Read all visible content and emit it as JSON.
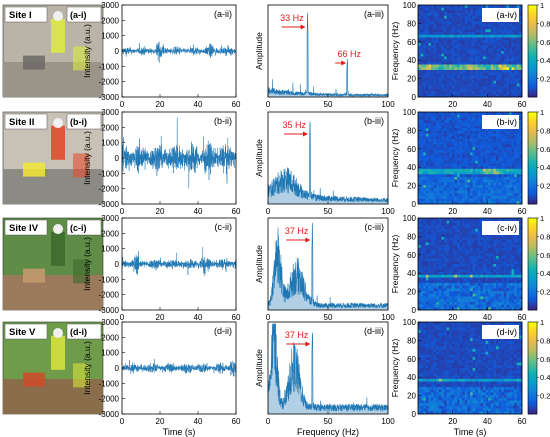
{
  "panels": {
    "xlabels": {
      "time": "Time (s)",
      "frequency": "Frequency (Hz)",
      "spectrogram": "Time (s)"
    },
    "ylabels": {
      "intensity": "Intensity (a.u.)",
      "amplitude": "Amplitude",
      "frequency": "Frequency (Hz)"
    },
    "colorbar": {
      "ticks": [
        "1",
        "0.8",
        "0.6",
        "0.4",
        "0.2"
      ]
    }
  },
  "rows": [
    {
      "site": "Site I",
      "photo_label": "(a-i)",
      "time_label": "(a-ii)",
      "fft_label": "(a-iii)",
      "spec_label": "(a-iv)",
      "peaks": [
        "33 Hz",
        "66 Hz"
      ]
    },
    {
      "site": "Site II",
      "photo_label": "(b-i)",
      "time_label": "(b-ii)",
      "fft_label": "(b-iii)",
      "spec_label": "(b-iv)",
      "peaks": [
        "35 Hz"
      ]
    },
    {
      "site": "Site IV",
      "photo_label": "(c-i)",
      "time_label": "(c-ii)",
      "fft_label": "(c-iii)",
      "spec_label": "(c-iv)",
      "peaks": [
        "37 Hz"
      ]
    },
    {
      "site": "Site V",
      "photo_label": "(d-i)",
      "time_label": "(d-ii)",
      "fft_label": "(d-iii)",
      "spec_label": "(d-iv)",
      "peaks": [
        "37 Hz"
      ]
    }
  ],
  "chart_data": [
    {
      "type": "line",
      "panel": "time-domain",
      "xlabel": "Time (s)",
      "ylabel": "Intensity (a.u.)",
      "xlim": [
        0,
        60
      ],
      "ylim": [
        -3000,
        3000
      ],
      "xticks": [
        0,
        20,
        40,
        60
      ],
      "yticks": [
        -3000,
        -2000,
        -1000,
        0,
        1000,
        2000,
        3000
      ],
      "series": [
        {
          "site": "Site I",
          "approx_amplitude": 400
        },
        {
          "site": "Site II",
          "approx_amplitude": 1500
        },
        {
          "site": "Site IV",
          "approx_amplitude": 500
        },
        {
          "site": "Site V",
          "approx_amplitude": 500
        }
      ]
    },
    {
      "type": "line",
      "panel": "frequency-spectrum",
      "xlabel": "Frequency (Hz)",
      "ylabel": "Amplitude",
      "xlim": [
        0,
        100
      ],
      "xticks": [
        0,
        50,
        100
      ],
      "peaks": [
        {
          "site": "Site I",
          "frequencies_hz": [
            33,
            66
          ]
        },
        {
          "site": "Site II",
          "frequencies_hz": [
            35
          ]
        },
        {
          "site": "Site IV",
          "frequencies_hz": [
            37
          ]
        },
        {
          "site": "Site V",
          "frequencies_hz": [
            37
          ]
        }
      ]
    },
    {
      "type": "heatmap",
      "panel": "spectrogram",
      "xlabel": "Time (s)",
      "ylabel": "Frequency (Hz)",
      "xlim": [
        0,
        60
      ],
      "ylim": [
        0,
        100
      ],
      "xticks": [
        20,
        40,
        60
      ],
      "yticks": [
        0,
        20,
        40,
        60,
        80,
        100
      ],
      "colorbar_range": [
        0,
        1
      ],
      "bands_hz": [
        {
          "site": "Site I",
          "frequencies_hz": [
            33,
            66
          ]
        },
        {
          "site": "Site II",
          "frequencies_hz": [
            35
          ]
        },
        {
          "site": "Site IV",
          "frequencies_hz": [
            37
          ]
        },
        {
          "site": "Site V",
          "frequencies_hz": [
            37
          ]
        }
      ]
    }
  ]
}
